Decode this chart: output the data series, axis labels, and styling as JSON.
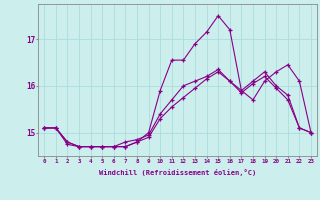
{
  "xlabel": "Windchill (Refroidissement éolien,°C)",
  "hours": [
    0,
    1,
    2,
    3,
    4,
    5,
    6,
    7,
    8,
    9,
    10,
    11,
    12,
    13,
    14,
    15,
    16,
    17,
    18,
    19,
    20,
    21,
    22,
    23
  ],
  "line1": [
    15.1,
    15.1,
    14.8,
    14.7,
    14.7,
    14.7,
    14.7,
    14.7,
    14.8,
    14.9,
    15.3,
    15.55,
    15.75,
    15.95,
    16.15,
    16.3,
    16.1,
    15.9,
    16.1,
    16.3,
    16.0,
    15.8,
    15.1,
    15.0
  ],
  "line2": [
    15.1,
    15.1,
    14.8,
    14.7,
    14.7,
    14.7,
    14.7,
    14.8,
    14.85,
    14.95,
    15.4,
    15.7,
    16.0,
    16.1,
    16.2,
    16.35,
    16.1,
    15.85,
    16.05,
    16.2,
    15.95,
    15.7,
    15.1,
    15.0
  ],
  "line3": [
    15.1,
    15.1,
    14.75,
    14.7,
    14.7,
    14.7,
    14.7,
    14.7,
    14.8,
    15.0,
    15.9,
    16.55,
    16.55,
    16.9,
    17.15,
    17.5,
    17.2,
    15.9,
    15.7,
    16.1,
    16.3,
    16.45,
    16.1,
    15.0
  ],
  "bg_color": "#cceeed",
  "grid_color": "#aadddd",
  "line_color": "#880088",
  "marker": "+",
  "ylim": [
    14.5,
    17.75
  ],
  "yticks": [
    15,
    16,
    17
  ],
  "xticks": [
    0,
    1,
    2,
    3,
    4,
    5,
    6,
    7,
    8,
    9,
    10,
    11,
    12,
    13,
    14,
    15,
    16,
    17,
    18,
    19,
    20,
    21,
    22,
    23
  ]
}
